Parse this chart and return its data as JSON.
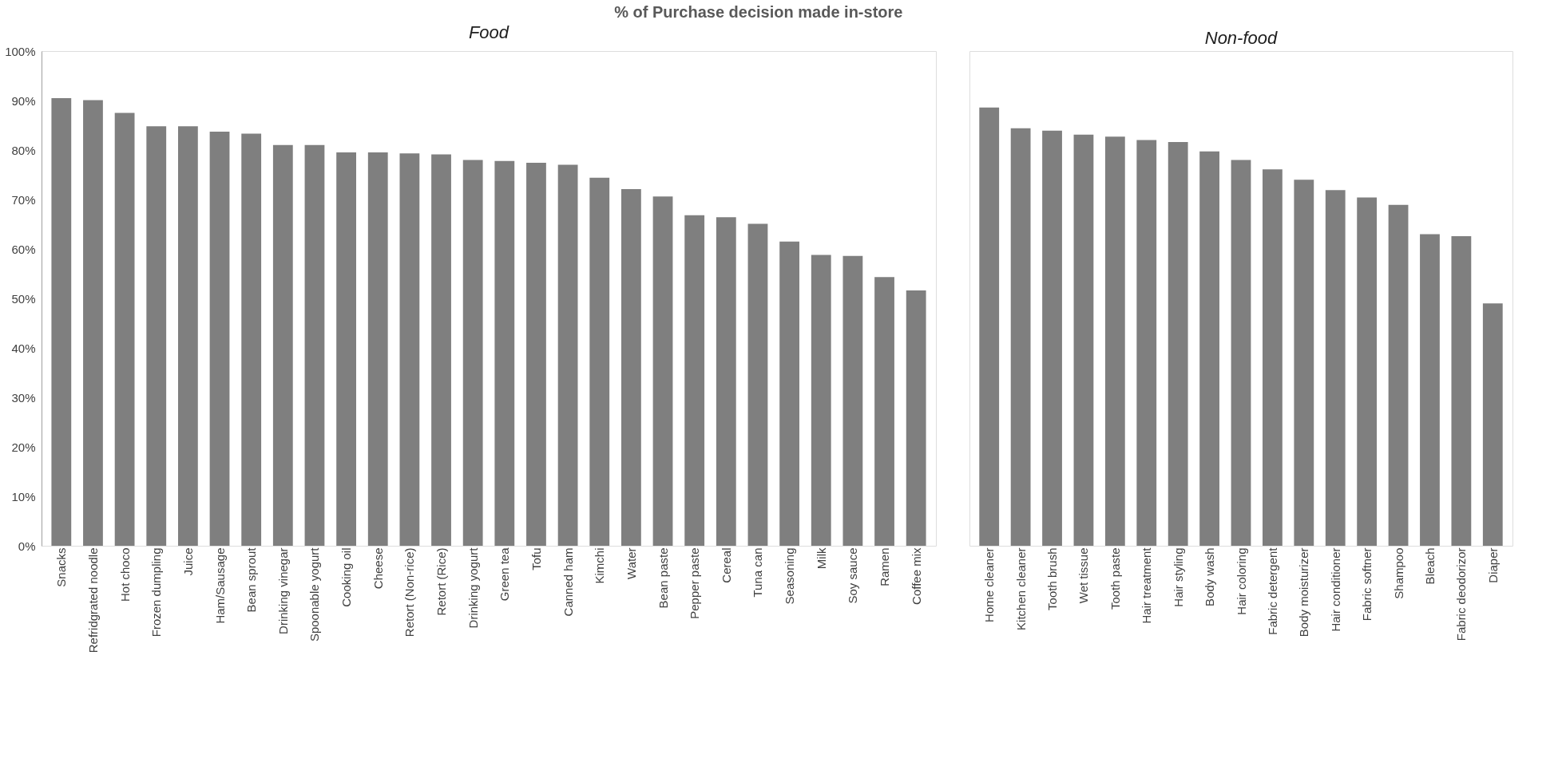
{
  "chart_data": [
    {
      "type": "bar",
      "title": "% of Purchase decision made in-store",
      "subtitle": "Food",
      "categories": [
        "Snacks",
        "Refridgrated noodle",
        "Hot choco",
        "Frozen dumpling",
        "Juice",
        "Ham/Sausage",
        "Bean sprout",
        "Drinking vinegar",
        "Spoonable yogurt",
        "Cooking oil",
        "Cheese",
        "Retort (Non-rice)",
        "Retort (Rice)",
        "Drinking yogurt",
        "Green tea",
        "Tofu",
        "Canned ham",
        "Kimchi",
        "Water",
        "Bean paste",
        "Pepper paste",
        "Cereal",
        "Tuna can",
        "Seasoning",
        "Milk",
        "Soy sauce",
        "Ramen",
        "Coffee mix"
      ],
      "series": [
        {
          "color": "#7f7f7f",
          "values": [
            90.5,
            90.1,
            87.5,
            84.8,
            84.8,
            83.7,
            83.3,
            81.0,
            81.0,
            79.5,
            79.5,
            79.3,
            79.1,
            78.0,
            77.8,
            77.4,
            77.0,
            74.4,
            72.1,
            70.6,
            66.8,
            66.4,
            65.1,
            61.5,
            58.8,
            58.6,
            54.3,
            51.6
          ]
        }
      ],
      "ylim": [
        0,
        100
      ],
      "yticks": [
        {
          "value": 0,
          "label": "0%"
        },
        {
          "value": 10,
          "label": "10%"
        },
        {
          "value": 20,
          "label": "20%"
        },
        {
          "value": 30,
          "label": "30%"
        },
        {
          "value": 40,
          "label": "40%"
        },
        {
          "value": 50,
          "label": "50%"
        },
        {
          "value": 60,
          "label": "60%"
        },
        {
          "value": 70,
          "label": "70%"
        },
        {
          "value": 80,
          "label": "80%"
        },
        {
          "value": 90,
          "label": "90%"
        },
        {
          "value": 100,
          "label": "100%"
        }
      ],
      "grid": false,
      "legend": false
    },
    {
      "type": "bar",
      "subtitle": "Non-food",
      "categories": [
        "Home cleaner",
        "Kitchen cleaner",
        "Tooth brush",
        "Wet tissue",
        "Tooth paste",
        "Hair treatment",
        "Hair styling",
        "Body wash",
        "Hair coloring",
        "Fabric detergent",
        "Body moisturizer",
        "Hair conditioner",
        "Fabric softner",
        "Shampoo",
        "Bleach",
        "Fabric deodorizor",
        "Diaper"
      ],
      "series": [
        {
          "color": "#7f7f7f",
          "values": [
            88.6,
            84.4,
            83.9,
            83.1,
            82.7,
            82.0,
            81.6,
            79.7,
            78.0,
            76.1,
            74.0,
            71.9,
            70.4,
            68.9,
            63.0,
            62.6,
            49.0
          ]
        }
      ],
      "ylim": [
        0,
        100
      ],
      "tick_labels": "x",
      "grid": false,
      "legend": false
    }
  ]
}
